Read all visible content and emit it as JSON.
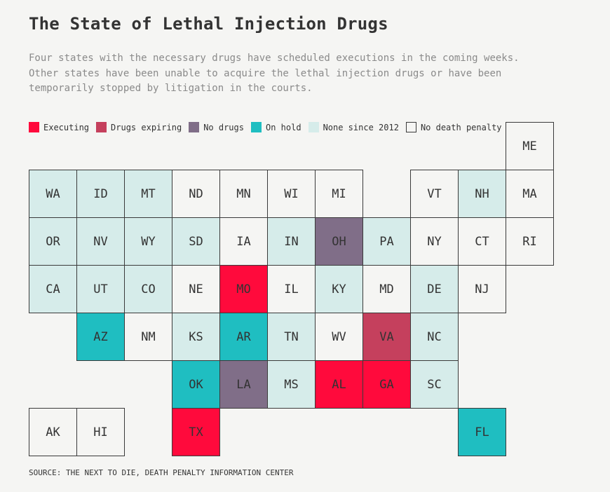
{
  "title": "The State of Lethal Injection Drugs",
  "subtitle": "Four states with the necessary drugs have scheduled executions in the coming weeks.\nOther states have been unable to acquire the lethal injection drugs or have been\ntemporarily stopped by litigation in the courts.",
  "source": "SOURCE: THE NEXT TO DIE, DEATH PENALTY INFORMATION CENTER",
  "colors": {
    "executing": "#ff0a3c",
    "expiring": "#c5405d",
    "nodrugs": "#806e88",
    "hold": "#1fbec1",
    "none2012": "#d6ecea",
    "nodp": "#f5f5f3"
  },
  "legend": [
    {
      "key": "executing",
      "label": "Executing"
    },
    {
      "key": "expiring",
      "label": "Drugs expiring"
    },
    {
      "key": "nodrugs",
      "label": "No drugs"
    },
    {
      "key": "hold",
      "label": "On hold"
    },
    {
      "key": "none2012",
      "label": "None since 2012"
    },
    {
      "key": "nodp",
      "label": "No death penalty"
    }
  ],
  "states": [
    {
      "abbr": "ME",
      "status": "nodp"
    },
    {
      "abbr": "WA",
      "status": "none2012"
    },
    {
      "abbr": "ID",
      "status": "none2012"
    },
    {
      "abbr": "MT",
      "status": "none2012"
    },
    {
      "abbr": "ND",
      "status": "nodp"
    },
    {
      "abbr": "MN",
      "status": "nodp"
    },
    {
      "abbr": "WI",
      "status": "nodp"
    },
    {
      "abbr": "MI",
      "status": "nodp"
    },
    {
      "abbr": "VT",
      "status": "nodp"
    },
    {
      "abbr": "NH",
      "status": "none2012"
    },
    {
      "abbr": "MA",
      "status": "nodp"
    },
    {
      "abbr": "OR",
      "status": "none2012"
    },
    {
      "abbr": "NV",
      "status": "none2012"
    },
    {
      "abbr": "WY",
      "status": "none2012"
    },
    {
      "abbr": "SD",
      "status": "none2012"
    },
    {
      "abbr": "IA",
      "status": "nodp"
    },
    {
      "abbr": "IN",
      "status": "none2012"
    },
    {
      "abbr": "OH",
      "status": "nodrugs"
    },
    {
      "abbr": "PA",
      "status": "none2012"
    },
    {
      "abbr": "NY",
      "status": "nodp"
    },
    {
      "abbr": "CT",
      "status": "nodp"
    },
    {
      "abbr": "RI",
      "status": "nodp"
    },
    {
      "abbr": "CA",
      "status": "none2012"
    },
    {
      "abbr": "UT",
      "status": "none2012"
    },
    {
      "abbr": "CO",
      "status": "none2012"
    },
    {
      "abbr": "NE",
      "status": "nodp"
    },
    {
      "abbr": "MO",
      "status": "executing"
    },
    {
      "abbr": "IL",
      "status": "nodp"
    },
    {
      "abbr": "KY",
      "status": "none2012"
    },
    {
      "abbr": "MD",
      "status": "nodp"
    },
    {
      "abbr": "DE",
      "status": "none2012"
    },
    {
      "abbr": "NJ",
      "status": "nodp"
    },
    {
      "abbr": "AZ",
      "status": "hold"
    },
    {
      "abbr": "NM",
      "status": "nodp"
    },
    {
      "abbr": "KS",
      "status": "none2012"
    },
    {
      "abbr": "AR",
      "status": "hold"
    },
    {
      "abbr": "TN",
      "status": "none2012"
    },
    {
      "abbr": "WV",
      "status": "nodp"
    },
    {
      "abbr": "VA",
      "status": "expiring"
    },
    {
      "abbr": "NC",
      "status": "none2012"
    },
    {
      "abbr": "OK",
      "status": "hold"
    },
    {
      "abbr": "LA",
      "status": "nodrugs"
    },
    {
      "abbr": "MS",
      "status": "none2012"
    },
    {
      "abbr": "AL",
      "status": "executing"
    },
    {
      "abbr": "GA",
      "status": "executing"
    },
    {
      "abbr": "SC",
      "status": "none2012"
    },
    {
      "abbr": "AK",
      "status": "nodp"
    },
    {
      "abbr": "HI",
      "status": "nodp"
    },
    {
      "abbr": "TX",
      "status": "executing"
    },
    {
      "abbr": "FL",
      "status": "hold"
    }
  ]
}
